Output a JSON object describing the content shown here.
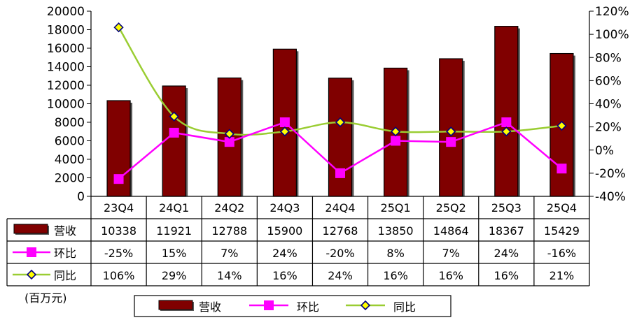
{
  "chart_data": {
    "type": "bar",
    "categories": [
      "23Q4",
      "24Q1",
      "24Q2",
      "24Q3",
      "24Q4",
      "25Q1",
      "25Q2",
      "25Q3",
      "25Q4"
    ],
    "series": [
      {
        "name": "营收",
        "type": "bar",
        "axis": "left",
        "values": [
          10338,
          11921,
          12788,
          15900,
          12768,
          13850,
          14864,
          18367,
          15429
        ],
        "labels": [
          "10338",
          "11921",
          "12788",
          "15900",
          "12768",
          "13850",
          "14864",
          "18367",
          "15429"
        ]
      },
      {
        "name": "环比",
        "type": "line",
        "axis": "right",
        "values": [
          -25,
          15,
          7,
          24,
          -20,
          8,
          7,
          24,
          -16
        ],
        "labels": [
          "-25%",
          "15%",
          "7%",
          "24%",
          "-20%",
          "8%",
          "7%",
          "24%",
          "-16%"
        ]
      },
      {
        "name": "同比",
        "type": "line",
        "axis": "right",
        "values": [
          106,
          29,
          14,
          16,
          24,
          16,
          16,
          16,
          21
        ],
        "labels": [
          "106%",
          "29%",
          "14%",
          "16%",
          "24%",
          "16%",
          "16%",
          "16%",
          "21%"
        ]
      }
    ],
    "y_left": {
      "range": [
        0,
        20000
      ],
      "ticks": [
        "0",
        "2000",
        "4000",
        "6000",
        "8000",
        "10000",
        "12000",
        "14000",
        "16000",
        "18000",
        "20000"
      ]
    },
    "y_right": {
      "range": [
        -40,
        120
      ],
      "ticks": [
        "-40%",
        "-20%",
        "0%",
        "20%",
        "40%",
        "60%",
        "80%",
        "100%",
        "120%"
      ]
    },
    "unit_label": "(百万元)",
    "legend": {
      "placement": "bottom",
      "entries": [
        "营收",
        "环比",
        "同比"
      ]
    },
    "grid": false,
    "colors": {
      "bar": "#800000",
      "bar_edge": "#000000",
      "qoq": "#ff00ff",
      "yoy": "#9acd32",
      "yoy_marker": "#000080",
      "yoy_marker_fill": "#ffff00"
    }
  }
}
